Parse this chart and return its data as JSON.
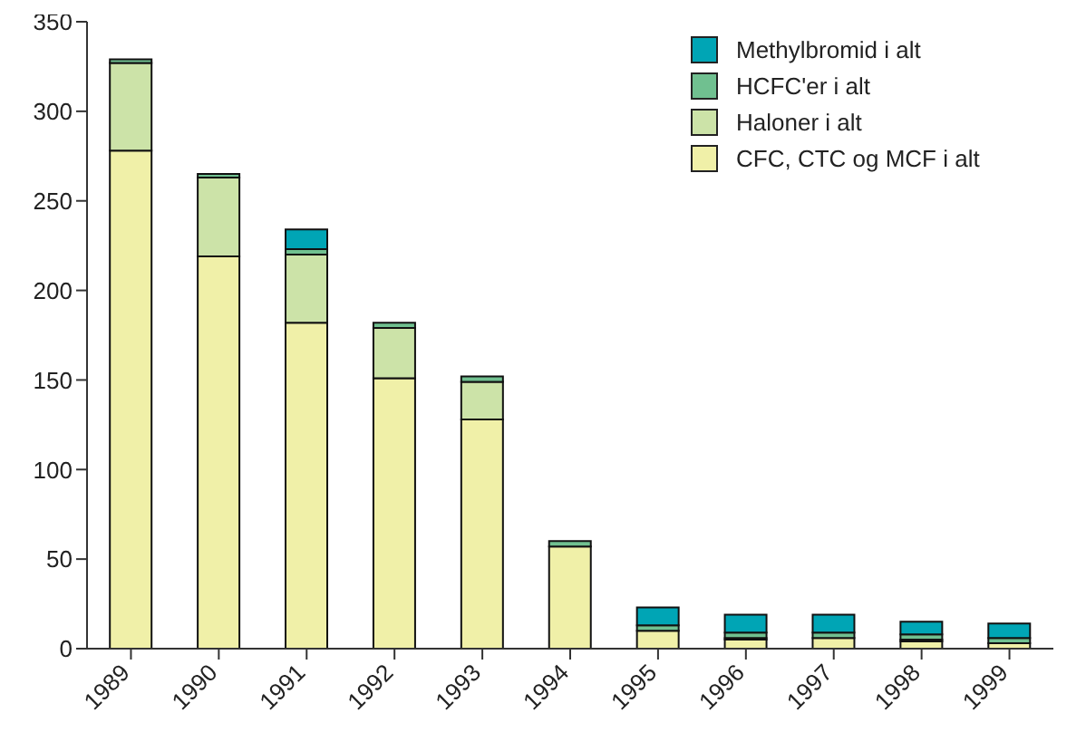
{
  "chart_data": {
    "type": "bar",
    "stacked": true,
    "categories": [
      "1989",
      "1990",
      "1991",
      "1992",
      "1993",
      "1994",
      "1995",
      "1996",
      "1997",
      "1998",
      "1999"
    ],
    "series": [
      {
        "name": "CFC, CTC og MCF i alt",
        "color": "#f0f0a8",
        "values": [
          278,
          219,
          182,
          151,
          128,
          57,
          10,
          5,
          6,
          4,
          3
        ]
      },
      {
        "name": "Haloner i alt",
        "color": "#cce3a8",
        "values": [
          49,
          44,
          38,
          28,
          21,
          0,
          null,
          1,
          0,
          1,
          0
        ]
      },
      {
        "name": "HCFC'er i alt",
        "color": "#70c090",
        "values": [
          2,
          2,
          3,
          3,
          3,
          3,
          3,
          3,
          3,
          3,
          3
        ]
      },
      {
        "name": "Methylbromid i alt",
        "color": "#00a5b5",
        "values": [
          0,
          0,
          11,
          0,
          0,
          0,
          10,
          10,
          10,
          7,
          8
        ]
      }
    ],
    "ylim": [
      0,
      350
    ],
    "yticks": [
      0,
      50,
      100,
      150,
      200,
      250,
      300,
      350
    ],
    "grid": false,
    "legend": "top right"
  }
}
